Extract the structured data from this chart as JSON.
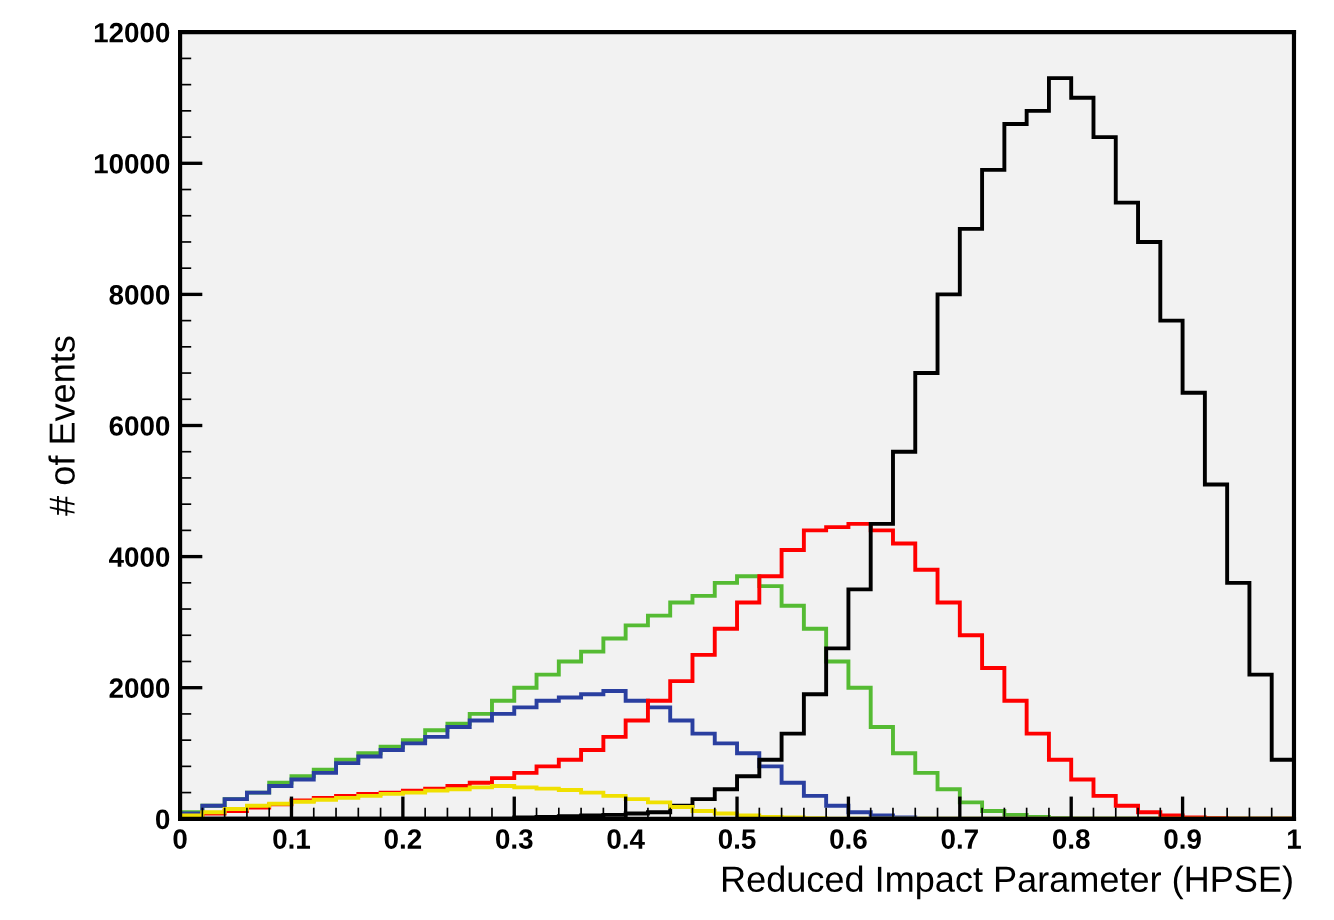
{
  "chart_data": {
    "type": "histogram",
    "xlabel": "Reduced Impact Parameter (HPSE)",
    "ylabel": "# of Events",
    "bins": [
      0,
      0.02,
      0.04,
      0.06,
      0.08,
      0.1,
      0.12,
      0.14,
      0.16,
      0.18,
      0.2,
      0.22,
      0.24,
      0.26,
      0.28,
      0.3,
      0.32,
      0.34,
      0.36,
      0.38,
      0.4,
      0.42,
      0.44,
      0.46,
      0.48,
      0.5,
      0.52,
      0.54,
      0.56,
      0.58,
      0.6,
      0.62,
      0.64,
      0.66,
      0.68,
      0.7,
      0.72,
      0.74,
      0.76,
      0.78,
      0.8,
      0.82,
      0.84,
      0.86,
      0.88,
      0.9,
      0.92,
      0.94,
      0.96,
      0.98,
      1
    ],
    "series": [
      {
        "color": "#55bb33",
        "values": [
          100,
          200,
          300,
          400,
          550,
          650,
          750,
          900,
          1000,
          1100,
          1200,
          1350,
          1450,
          1600,
          1800,
          2000,
          2200,
          2400,
          2550,
          2750,
          2950,
          3100,
          3300,
          3400,
          3600,
          3700,
          3550,
          3250,
          2900,
          2400,
          2000,
          1400,
          1000,
          700,
          450,
          250,
          120,
          60,
          30,
          10,
          0,
          0,
          0,
          0,
          0,
          0,
          0,
          0,
          0,
          0
        ]
      },
      {
        "color": "#2a3fa0",
        "values": [
          80,
          200,
          300,
          400,
          500,
          600,
          700,
          850,
          950,
          1050,
          1150,
          1250,
          1400,
          1500,
          1600,
          1700,
          1800,
          1850,
          1900,
          1950,
          1800,
          1700,
          1500,
          1300,
          1150,
          1000,
          800,
          550,
          350,
          200,
          100,
          50,
          20,
          0,
          0,
          0,
          0,
          0,
          0,
          0,
          0,
          0,
          0,
          0,
          0,
          0,
          0,
          0,
          0,
          0
        ]
      },
      {
        "color": "#ff0000",
        "values": [
          40,
          80,
          120,
          170,
          220,
          280,
          320,
          350,
          380,
          400,
          430,
          460,
          500,
          550,
          620,
          700,
          800,
          900,
          1050,
          1250,
          1500,
          1800,
          2100,
          2500,
          2900,
          3300,
          3700,
          4100,
          4400,
          4450,
          4500,
          4400,
          4200,
          3800,
          3300,
          2800,
          2300,
          1800,
          1300,
          900,
          600,
          350,
          200,
          100,
          50,
          20,
          10,
          0,
          0,
          0
        ]
      },
      {
        "color": "#000000",
        "values": [
          0,
          0,
          0,
          0,
          0,
          0,
          0,
          0,
          0,
          0,
          0,
          0,
          0,
          0,
          0,
          20,
          30,
          40,
          50,
          60,
          80,
          100,
          200,
          300,
          450,
          650,
          900,
          1300,
          1900,
          2600,
          3500,
          4500,
          5600,
          6800,
          8000,
          9000,
          9900,
          10600,
          10800,
          11300,
          11000,
          10400,
          9400,
          8800,
          7600,
          6500,
          5100,
          3600,
          2200,
          900
        ]
      },
      {
        "color": "#f0e000",
        "values": [
          50,
          100,
          150,
          200,
          230,
          260,
          290,
          320,
          350,
          380,
          400,
          430,
          450,
          480,
          500,
          480,
          460,
          440,
          400,
          350,
          300,
          250,
          180,
          120,
          80,
          50,
          30,
          20,
          10,
          0,
          0,
          0,
          0,
          0,
          0,
          0,
          0,
          0,
          0,
          0,
          0,
          0,
          0,
          0,
          0,
          0,
          0,
          0,
          0,
          0
        ]
      }
    ],
    "xlim": [
      0,
      1
    ],
    "ylim": [
      0,
      12000
    ],
    "xticks": [
      0,
      0.1,
      0.2,
      0.3,
      0.4,
      0.5,
      0.6,
      0.7,
      0.8,
      0.9,
      1
    ],
    "yticks": [
      0,
      2000,
      4000,
      6000,
      8000,
      10000,
      12000
    ],
    "grid": false
  }
}
